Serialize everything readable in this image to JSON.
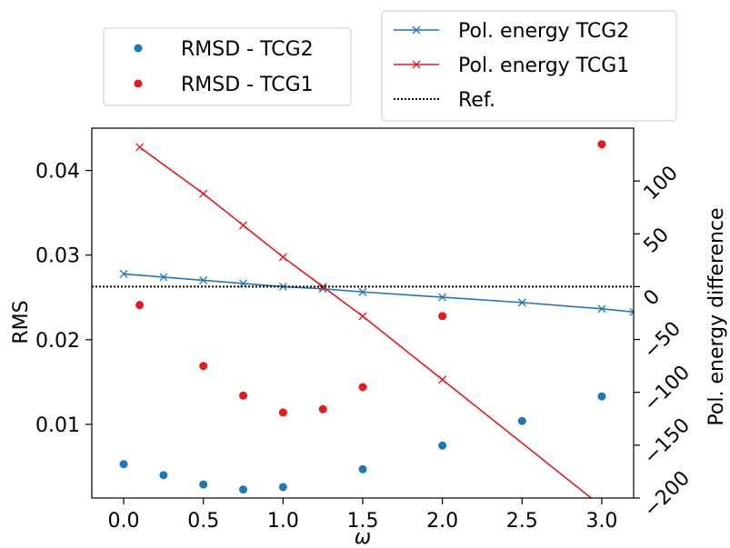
{
  "chart_data": {
    "type": "scatter",
    "xlabel": "ω",
    "ylabel_left": "RMS",
    "ylabel_right": "Pol. energy difference",
    "xlim": [
      -0.2,
      3.2
    ],
    "ylim_left": [
      0.0013,
      0.045
    ],
    "ylim_right": [
      -200,
      150
    ],
    "x_ticks": [
      "0.0",
      "0.5",
      "1.0",
      "1.5",
      "2.0",
      "2.5",
      "3.0"
    ],
    "y_left_ticks": [
      "0.01",
      "0.02",
      "0.03",
      "0.04"
    ],
    "y_right_ticks": [
      "100",
      "50",
      "0",
      "−50",
      "−100",
      "−150",
      "−200"
    ],
    "grid": false,
    "series": [
      {
        "name": "RMSD - TCG2",
        "kind": "scatter",
        "axis": "left",
        "color": "#1f77b4",
        "x": [
          0.0,
          0.25,
          0.5,
          0.75,
          1.0,
          1.5,
          2.0,
          2.5,
          3.0
        ],
        "y": [
          0.0053,
          0.004,
          0.0029,
          0.0023,
          0.0026,
          0.0047,
          0.0075,
          0.0104,
          0.0133
        ]
      },
      {
        "name": "RMSD - TCG1",
        "kind": "scatter",
        "axis": "left",
        "color": "#e41a1c",
        "x": [
          0.1,
          0.5,
          0.75,
          1.0,
          1.25,
          1.5,
          2.0,
          3.0
        ],
        "y": [
          0.0241,
          0.0169,
          0.0134,
          0.0114,
          0.0118,
          0.0144,
          0.0228,
          0.0431
        ]
      },
      {
        "name": "Pol. energy TCG2",
        "kind": "line",
        "axis": "right",
        "color": "#1f77b4",
        "x": [
          0.0,
          0.25,
          0.5,
          0.75,
          1.0,
          1.25,
          1.5,
          2.0,
          2.5,
          3.0,
          3.2
        ],
        "y": [
          12,
          9,
          6,
          3,
          0,
          -2,
          -5,
          -10,
          -15,
          -21,
          -24
        ]
      },
      {
        "name": "Pol. energy TCG1",
        "kind": "line",
        "axis": "right",
        "color": "#e41a1c",
        "x": [
          0.1,
          0.5,
          0.75,
          1.0,
          1.25,
          1.5,
          2.0,
          3.0
        ],
        "y": [
          132,
          88,
          58,
          28,
          0,
          -28,
          -88,
          -208
        ]
      },
      {
        "name": "Ref.",
        "kind": "ref",
        "axis": "right",
        "color": "#000000",
        "y": 0
      }
    ],
    "legend_left": [
      "RMSD - TCG2",
      "RMSD - TCG1"
    ],
    "legend_right": [
      "Pol. energy TCG2",
      "Pol. energy TCG1",
      "Ref."
    ]
  }
}
